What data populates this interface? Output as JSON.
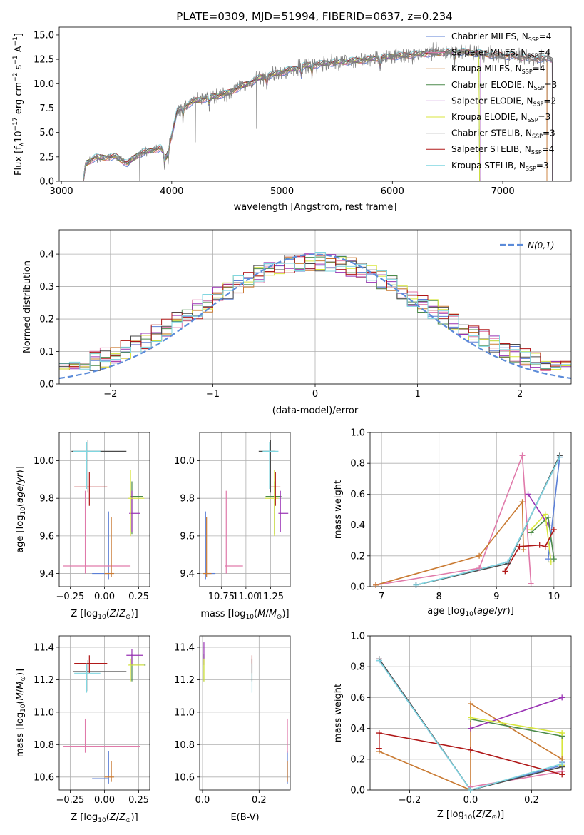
{
  "figure": {
    "title": "PLATE=0309, MJD=51994, FIBERID=0637, z=0.234"
  },
  "models": [
    {
      "label": "Chabrier MILES, N",
      "sub": "SSP",
      "tail": "=4",
      "color": "#5b7fd6"
    },
    {
      "label": "Salpeter MILES, N",
      "sub": "SSP",
      "tail": "=4",
      "color": "#e07aaa"
    },
    {
      "label": "Kroupa MILES, N",
      "sub": "SSP",
      "tail": "=4",
      "color": "#c97a32"
    },
    {
      "label": "Chabrier ELODIE, N",
      "sub": "SSP",
      "tail": "=3",
      "color": "#4b8a4b"
    },
    {
      "label": "Salpeter ELODIE, N",
      "sub": "SSP",
      "tail": "=2",
      "color": "#9932b4"
    },
    {
      "label": "Kroupa ELODIE, N",
      "sub": "SSP",
      "tail": "=3",
      "color": "#d8e63c"
    },
    {
      "label": "Chabrier STELIB, N",
      "sub": "SSP",
      "tail": "=3",
      "color": "#4a4a4a"
    },
    {
      "label": "Salpeter STELIB, N",
      "sub": "SSP",
      "tail": "=4",
      "color": "#b01818"
    },
    {
      "label": "Kroupa STELIB, N",
      "sub": "SSP",
      "tail": "=3",
      "color": "#7fd6e0"
    }
  ],
  "chart_data": [
    {
      "id": "spectrum",
      "type": "line",
      "xlabel": "wavelength [Angstrom, rest frame]",
      "ylabel": "Flux [fλ10⁻¹⁷ erg cm⁻² s⁻¹ A⁻¹]",
      "xlim": [
        2980,
        7620
      ],
      "ylim": [
        0,
        15.8
      ],
      "xticks": [
        3000,
        4000,
        5000,
        6000,
        7000
      ],
      "yticks": [
        0.0,
        2.5,
        5.0,
        7.5,
        10.0,
        12.5,
        15.0
      ],
      "continuum_knots": [
        [
          3200,
          0.0
        ],
        [
          3220,
          1.8
        ],
        [
          3300,
          2.4
        ],
        [
          3500,
          2.5
        ],
        [
          3600,
          1.8
        ],
        [
          3700,
          2.8
        ],
        [
          3900,
          3.4
        ],
        [
          3950,
          2.4
        ],
        [
          4050,
          7.2
        ],
        [
          4200,
          8.2
        ],
        [
          4500,
          9.0
        ],
        [
          4800,
          10.6
        ],
        [
          5000,
          11.2
        ],
        [
          5200,
          11.8
        ],
        [
          5400,
          12.1
        ],
        [
          5700,
          12.4
        ],
        [
          6000,
          12.8
        ],
        [
          6300,
          13.1
        ],
        [
          6600,
          13.3
        ],
        [
          6900,
          13.0
        ],
        [
          7300,
          12.6
        ],
        [
          7450,
          12.5
        ]
      ],
      "grid": false
    },
    {
      "id": "residuals",
      "type": "histogram",
      "xlabel": "(data-model)/error",
      "ylabel": "Normed distribution",
      "xlim": [
        -2.5,
        2.5
      ],
      "ylim": [
        0,
        0.475
      ],
      "xticks": [
        -2,
        -1,
        0,
        1,
        2
      ],
      "yticks": [
        0.0,
        0.1,
        0.2,
        0.3,
        0.4
      ],
      "reference": {
        "label": "N(0,1)",
        "mu": 0,
        "sigma": 1,
        "color": "#5b8bd9"
      },
      "legend": "top-right",
      "grid": true
    },
    {
      "id": "age-vs-Z",
      "type": "errorbar",
      "xlabel": "Z [log10(Z/Z⊙)]",
      "ylabel": "age  [log10(age/yr)]",
      "xlim": [
        -0.33,
        0.33
      ],
      "ylim": [
        9.33,
        10.15
      ],
      "xticks": [
        -0.25,
        0.0,
        0.25
      ],
      "yticks": [
        9.4,
        9.6,
        9.8,
        10.0
      ],
      "points": [
        {
          "m": 0,
          "x": 0.03,
          "y": 9.4,
          "xerr": [
            0.12,
            0.0
          ],
          "yerr": [
            0.03,
            0.33
          ]
        },
        {
          "m": 1,
          "x": -0.14,
          "y": 9.44,
          "xerr": [
            0.16,
            0.33
          ],
          "yerr": [
            0.04,
            0.4
          ]
        },
        {
          "m": 2,
          "x": 0.05,
          "y": 9.4,
          "xerr": [
            0.05,
            0.02
          ],
          "yerr": [
            0.02,
            0.3
          ]
        },
        {
          "m": 3,
          "x": 0.2,
          "y": 9.81,
          "xerr": [
            0.01,
            0.08
          ],
          "yerr": [
            0.2,
            0.08
          ]
        },
        {
          "m": 4,
          "x": 0.2,
          "y": 9.72,
          "xerr": [
            0.02,
            0.06
          ],
          "yerr": [
            0.1,
            0.12
          ]
        },
        {
          "m": 5,
          "x": 0.19,
          "y": 9.8,
          "xerr": [
            0.02,
            0.1
          ],
          "yerr": [
            0.2,
            0.15
          ]
        },
        {
          "m": 6,
          "x": -0.12,
          "y": 10.05,
          "xerr": [
            0.12,
            0.28
          ],
          "yerr": [
            0.22,
            0.06
          ]
        },
        {
          "m": 7,
          "x": -0.11,
          "y": 9.86,
          "xerr": [
            0.11,
            0.13
          ],
          "yerr": [
            0.1,
            0.08
          ]
        },
        {
          "m": 8,
          "x": -0.13,
          "y": 10.05,
          "xerr": [
            0.1,
            0.1
          ],
          "yerr": [
            0.2,
            0.05
          ]
        }
      ]
    },
    {
      "id": "age-vs-mass",
      "type": "errorbar",
      "xlabel": "mass [log10(M/M⊙)]",
      "ylabel": "",
      "xlim": [
        10.53,
        11.45
      ],
      "ylim": [
        9.33,
        10.15
      ],
      "xticks": [
        10.75,
        11.0,
        11.25
      ],
      "xticklabels": [
        "10.75",
        "11.00",
        "11.25"
      ],
      "yticks": [
        9.4,
        9.6,
        9.8,
        10.0
      ],
      "points": [
        {
          "m": 0,
          "x": 10.59,
          "y": 9.4,
          "xerr": [
            0.01,
            0.1
          ],
          "yerr": [
            0.03,
            0.33
          ]
        },
        {
          "m": 1,
          "x": 10.8,
          "y": 9.44,
          "xerr": [
            0.01,
            0.17
          ],
          "yerr": [
            0.04,
            0.4
          ]
        },
        {
          "m": 2,
          "x": 10.6,
          "y": 9.4,
          "xerr": [
            0.04,
            0.05
          ],
          "yerr": [
            0.02,
            0.3
          ]
        },
        {
          "m": 3,
          "x": 11.29,
          "y": 9.81,
          "xerr": [
            0.09,
            0.07
          ],
          "yerr": [
            0.2,
            0.08
          ]
        },
        {
          "m": 4,
          "x": 11.35,
          "y": 9.72,
          "xerr": [
            0.02,
            0.08
          ],
          "yerr": [
            0.1,
            0.12
          ]
        },
        {
          "m": 5,
          "x": 11.29,
          "y": 9.8,
          "xerr": [
            0.1,
            0.04
          ],
          "yerr": [
            0.2,
            0.15
          ]
        },
        {
          "m": 6,
          "x": 11.25,
          "y": 10.05,
          "xerr": [
            0.12,
            0.05
          ],
          "yerr": [
            0.22,
            0.06
          ]
        },
        {
          "m": 7,
          "x": 11.3,
          "y": 9.86,
          "xerr": [
            0.05,
            0.05
          ],
          "yerr": [
            0.1,
            0.08
          ]
        },
        {
          "m": 8,
          "x": 11.24,
          "y": 10.05,
          "xerr": [
            0.07,
            0.09
          ],
          "yerr": [
            0.2,
            0.05
          ]
        }
      ]
    },
    {
      "id": "massweight-vs-age",
      "type": "line",
      "xlabel": "age  [log10(age/yr)]",
      "ylabel": "mass weight",
      "xlim": [
        6.8,
        10.3
      ],
      "ylim": [
        0,
        1.0
      ],
      "xticks": [
        7,
        8,
        9,
        10
      ],
      "yticks": [
        0.0,
        0.2,
        0.4,
        0.6,
        0.8,
        1.0
      ],
      "series": [
        {
          "m": 0,
          "points": [
            [
              7.6,
              0.01
            ],
            [
              9.2,
              0.16
            ],
            [
              10.1,
              0.84
            ],
            [
              9.9,
              0.18
            ]
          ]
        },
        {
          "m": 1,
          "points": [
            [
              6.9,
              0.01
            ],
            [
              8.7,
              0.12
            ],
            [
              9.45,
              0.85
            ],
            [
              9.6,
              0.02
            ]
          ]
        },
        {
          "m": 2,
          "points": [
            [
              6.9,
              0.01
            ],
            [
              8.7,
              0.2
            ],
            [
              9.45,
              0.55
            ],
            [
              9.47,
              0.24
            ]
          ]
        },
        {
          "m": 3,
          "points": [
            [
              9.6,
              0.35
            ],
            [
              9.9,
              0.45
            ],
            [
              10.0,
              0.18
            ]
          ]
        },
        {
          "m": 4,
          "points": [
            [
              9.55,
              0.6
            ],
            [
              9.9,
              0.4
            ]
          ]
        },
        {
          "m": 5,
          "points": [
            [
              9.6,
              0.37
            ],
            [
              9.85,
              0.47
            ],
            [
              9.95,
              0.16
            ]
          ]
        },
        {
          "m": 6,
          "points": [
            [
              7.6,
              0.01
            ],
            [
              9.2,
              0.15
            ],
            [
              10.1,
              0.85
            ]
          ]
        },
        {
          "m": 7,
          "points": [
            [
              9.15,
              0.1
            ],
            [
              9.4,
              0.26
            ],
            [
              9.75,
              0.27
            ],
            [
              9.85,
              0.26
            ],
            [
              10.0,
              0.37
            ]
          ]
        },
        {
          "m": 8,
          "points": [
            [
              7.6,
              0.01
            ],
            [
              9.2,
              0.16
            ],
            [
              10.1,
              0.84
            ]
          ]
        }
      ]
    },
    {
      "id": "mass-vs-Z",
      "type": "errorbar",
      "xlabel": "Z [log10(Z/Z⊙)]",
      "ylabel": "mass [log10(M/M⊙)]",
      "xlim": [
        -0.33,
        0.33
      ],
      "ylim": [
        10.52,
        11.47
      ],
      "xticks": [
        -0.25,
        0.0,
        0.25
      ],
      "yticks": [
        10.6,
        10.8,
        11.0,
        11.2,
        11.4
      ],
      "points": [
        {
          "m": 0,
          "x": 0.03,
          "y": 10.59,
          "xerr": [
            0.12,
            0.0
          ],
          "yerr": [
            0.03,
            0.17
          ]
        },
        {
          "m": 1,
          "x": -0.14,
          "y": 10.79,
          "xerr": [
            0.16,
            0.4
          ],
          "yerr": [
            0.04,
            0.17
          ]
        },
        {
          "m": 2,
          "x": 0.05,
          "y": 10.6,
          "xerr": [
            0.05,
            0.02
          ],
          "yerr": [
            0.03,
            0.1
          ]
        },
        {
          "m": 3,
          "x": 0.2,
          "y": 11.29,
          "xerr": [
            0.02,
            0.1
          ],
          "yerr": [
            0.1,
            0.07
          ]
        },
        {
          "m": 4,
          "x": 0.2,
          "y": 11.35,
          "xerr": [
            0.04,
            0.08
          ],
          "yerr": [
            0.06,
            0.04
          ]
        },
        {
          "m": 5,
          "x": 0.19,
          "y": 11.29,
          "xerr": [
            0.02,
            0.1
          ],
          "yerr": [
            0.1,
            0.04
          ]
        },
        {
          "m": 6,
          "x": -0.12,
          "y": 11.25,
          "xerr": [
            0.11,
            0.28
          ],
          "yerr": [
            0.12,
            0.07
          ]
        },
        {
          "m": 7,
          "x": -0.11,
          "y": 11.3,
          "xerr": [
            0.11,
            0.13
          ],
          "yerr": [
            0.06,
            0.05
          ]
        },
        {
          "m": 8,
          "x": -0.13,
          "y": 11.24,
          "xerr": [
            0.09,
            0.1
          ],
          "yerr": [
            0.12,
            0.06
          ]
        }
      ]
    },
    {
      "id": "mass-vs-EBV",
      "type": "errorbar",
      "xlabel": "E(B-V)",
      "ylabel": "",
      "xlim": [
        -0.01,
        0.31
      ],
      "ylim": [
        10.52,
        11.47
      ],
      "xticks": [
        0.0,
        0.2
      ],
      "yticks": [
        10.6,
        10.8,
        11.0,
        11.2,
        11.4
      ],
      "points": [
        {
          "m": 0,
          "x": 0.3,
          "y": 10.59,
          "xerr": [
            0,
            0
          ],
          "yerr": [
            0.03,
            0.17
          ]
        },
        {
          "m": 1,
          "x": 0.3,
          "y": 10.79,
          "xerr": [
            0,
            0
          ],
          "yerr": [
            0.04,
            0.17
          ]
        },
        {
          "m": 2,
          "x": 0.3,
          "y": 10.6,
          "xerr": [
            0,
            0
          ],
          "yerr": [
            0.03,
            0.1
          ]
        },
        {
          "m": 3,
          "x": 0.005,
          "y": 11.29,
          "xerr": [
            0,
            0
          ],
          "yerr": [
            0.1,
            0.07
          ]
        },
        {
          "m": 4,
          "x": 0.005,
          "y": 11.35,
          "xerr": [
            0,
            0
          ],
          "yerr": [
            0.06,
            0.08
          ]
        },
        {
          "m": 5,
          "x": 0.005,
          "y": 11.29,
          "xerr": [
            0,
            0
          ],
          "yerr": [
            0.1,
            0.04
          ]
        },
        {
          "m": 6,
          "x": 0.175,
          "y": 11.25,
          "xerr": [
            0,
            0
          ],
          "yerr": [
            0.06,
            0.08
          ]
        },
        {
          "m": 7,
          "x": 0.175,
          "y": 11.3,
          "xerr": [
            0,
            0
          ],
          "yerr": [
            0.06,
            0.05
          ]
        },
        {
          "m": 8,
          "x": 0.175,
          "y": 11.24,
          "xerr": [
            0,
            0
          ],
          "yerr": [
            0.12,
            0.06
          ]
        }
      ]
    },
    {
      "id": "massweight-vs-Z",
      "type": "line",
      "xlabel": "Z [log10(Z/Z⊙)]",
      "ylabel": "mass weight",
      "xlim": [
        -0.33,
        0.33
      ],
      "ylim": [
        0,
        1.0
      ],
      "xticks": [
        -0.2,
        0.0,
        0.2
      ],
      "yticks": [
        0.0,
        0.2,
        0.4,
        0.6,
        0.8,
        1.0
      ],
      "series": [
        {
          "m": 0,
          "points": [
            [
              -0.3,
              0.84
            ],
            [
              0.0,
              0.0
            ],
            [
              0.3,
              0.16
            ],
            [
              0.3,
              0.18
            ]
          ]
        },
        {
          "m": 1,
          "points": [
            [
              -0.3,
              0.85
            ],
            [
              0.0,
              0.0
            ],
            [
              0.0,
              0.02
            ],
            [
              0.3,
              0.12
            ]
          ]
        },
        {
          "m": 2,
          "points": [
            [
              -0.3,
              0.25
            ],
            [
              0.0,
              0.0
            ],
            [
              0.0,
              0.56
            ],
            [
              0.3,
              0.2
            ]
          ]
        },
        {
          "m": 3,
          "points": [
            [
              0.0,
              0.46
            ],
            [
              0.3,
              0.35
            ]
          ]
        },
        {
          "m": 4,
          "points": [
            [
              0.0,
              0.4
            ],
            [
              0.3,
              0.6
            ]
          ]
        },
        {
          "m": 5,
          "points": [
            [
              0.0,
              0.47
            ],
            [
              0.3,
              0.37
            ],
            [
              0.3,
              0.16
            ]
          ]
        },
        {
          "m": 6,
          "points": [
            [
              -0.3,
              0.85
            ],
            [
              0.0,
              0.0
            ],
            [
              0.3,
              0.15
            ]
          ]
        },
        {
          "m": 7,
          "points": [
            [
              -0.3,
              0.27
            ],
            [
              -0.3,
              0.37
            ],
            [
              0.0,
              0.26
            ],
            [
              0.3,
              0.1
            ]
          ]
        },
        {
          "m": 8,
          "points": [
            [
              -0.3,
              0.84
            ],
            [
              0.0,
              0.0
            ],
            [
              0.3,
              0.17
            ]
          ]
        }
      ]
    }
  ]
}
